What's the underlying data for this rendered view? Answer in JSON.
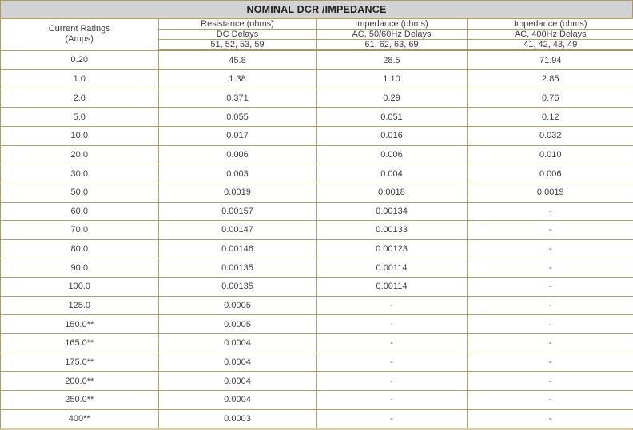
{
  "title": "NOMINAL DCR /IMPEDANCE",
  "colors": {
    "border_gold": "#b2a166",
    "outer_bottom_edge": "#d9cda6",
    "title_bg": "#d1d3d4",
    "text": "#414042"
  },
  "table": {
    "row_header": {
      "line1": "Current Ratings",
      "line2": "(Amps)"
    },
    "column_groups": [
      {
        "unit": "Resistance (ohms)",
        "delay": "DC Delays",
        "series": "51, 52, 53, 59"
      },
      {
        "unit": "Impedance (ohms)",
        "delay": "AC, 50/60Hz Delays",
        "series": "61, 62, 63, 69"
      },
      {
        "unit": "Impedance (ohms)",
        "delay": "AC, 400Hz Delays",
        "series": "41, 42, 43, 49"
      }
    ],
    "rows": [
      [
        "0.20",
        "45.8",
        "28.5",
        "71.94"
      ],
      [
        "1.0",
        "1.38",
        "1.10",
        "2.85"
      ],
      [
        "2.0",
        "0.371",
        "0.29",
        "0.76"
      ],
      [
        "5.0",
        "0.055",
        "0.051",
        "0.12"
      ],
      [
        "10.0",
        "0.017",
        "0.016",
        "0.032"
      ],
      [
        "20.0",
        "0.006",
        "0.006",
        "0.010"
      ],
      [
        "30.0",
        "0.003",
        "0.004",
        "0.006"
      ],
      [
        "50.0",
        "0.0019",
        "0.0018",
        "0.0019"
      ],
      [
        "60.0",
        "0.00157",
        "0.00134",
        "-"
      ],
      [
        "70.0",
        "0.00147",
        "0.00133",
        "-"
      ],
      [
        "80.0",
        "0.00146",
        "0.00123",
        "-"
      ],
      [
        "90.0",
        "0.00135",
        "0.00114",
        "-"
      ],
      [
        "100.0",
        "0.00135",
        "0.00114",
        "-"
      ],
      [
        "125.0",
        "0.0005",
        "-",
        "-"
      ],
      [
        "150.0**",
        "0.0005",
        "-",
        "-"
      ],
      [
        "165.0**",
        "0.0004",
        "-",
        "-"
      ],
      [
        "175.0**",
        "0.0004",
        "-",
        "-"
      ],
      [
        "200.0**",
        "0.0004",
        "-",
        "-"
      ],
      [
        "250.0**",
        "0.0004",
        "-",
        "-"
      ],
      [
        "400**",
        "0.0003",
        "-",
        "-"
      ]
    ]
  }
}
